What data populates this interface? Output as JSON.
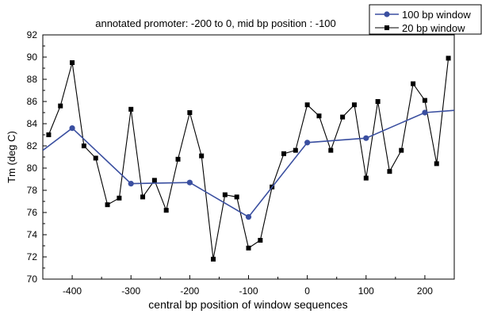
{
  "chart_data": {
    "type": "line",
    "title": "annotated promoter: -200 to 0, mid bp position : -100",
    "xlabel": "central bp position of window sequences",
    "ylabel": "Tm (deg C)",
    "xlim": [
      -450,
      250
    ],
    "ylim": [
      70,
      92
    ],
    "xticks": [
      -400,
      -300,
      -200,
      -100,
      0,
      100,
      200
    ],
    "yticks": [
      70,
      72,
      74,
      76,
      78,
      80,
      82,
      84,
      86,
      88,
      90,
      92
    ],
    "grid": false,
    "legend_position": "top-right",
    "series": [
      {
        "name": "100 bp window",
        "color": "#3a4fa0",
        "marker": "circle",
        "points": [
          [
            -450,
            81.6
          ],
          [
            -400,
            83.6
          ],
          [
            -300,
            78.6
          ],
          [
            -200,
            78.7
          ],
          [
            -100,
            75.6
          ],
          [
            0,
            82.3
          ],
          [
            100,
            82.7
          ],
          [
            200,
            85.0
          ],
          [
            250,
            85.2
          ]
        ]
      },
      {
        "name": "20 bp window",
        "color": "#000000",
        "marker": "square",
        "points": [
          [
            -440,
            83.0
          ],
          [
            -420,
            85.6
          ],
          [
            -400,
            89.5
          ],
          [
            -380,
            82.0
          ],
          [
            -360,
            80.9
          ],
          [
            -340,
            76.7
          ],
          [
            -320,
            77.3
          ],
          [
            -300,
            85.3
          ],
          [
            -280,
            77.4
          ],
          [
            -260,
            78.9
          ],
          [
            -240,
            76.2
          ],
          [
            -220,
            80.8
          ],
          [
            -200,
            85.0
          ],
          [
            -180,
            81.1
          ],
          [
            -160,
            71.8
          ],
          [
            -140,
            77.6
          ],
          [
            -120,
            77.4
          ],
          [
            -100,
            72.8
          ],
          [
            -80,
            73.5
          ],
          [
            -60,
            78.3
          ],
          [
            -40,
            81.3
          ],
          [
            -20,
            81.6
          ],
          [
            0,
            85.7
          ],
          [
            20,
            84.7
          ],
          [
            40,
            81.6
          ],
          [
            60,
            84.6
          ],
          [
            80,
            85.7
          ],
          [
            100,
            79.1
          ],
          [
            120,
            86.0
          ],
          [
            140,
            79.7
          ],
          [
            160,
            81.6
          ],
          [
            180,
            87.6
          ],
          [
            200,
            86.1
          ],
          [
            220,
            80.4
          ],
          [
            240,
            89.9
          ]
        ]
      }
    ]
  }
}
